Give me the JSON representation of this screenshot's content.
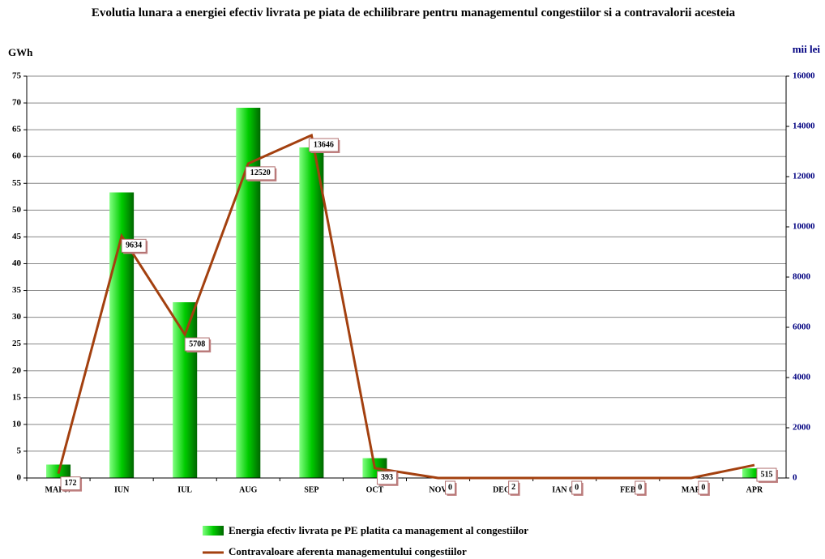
{
  "chart_data": {
    "type": "bar_line",
    "title": "Evolutia lunara a energiei efectiv livrata pe piata de echilibrare pentru managementul congestiilor si a contravalorii acesteia",
    "y_label": "GWh",
    "y2_label": "mii lei",
    "categories": [
      "MAI 07",
      "IUN",
      "IUL",
      "AUG",
      "SEP",
      "OCT",
      "NOV",
      "DEC",
      "IAN 08",
      "FEB",
      "MAR",
      "APR"
    ],
    "series": [
      {
        "name": "Energia efectiv livrata pe PE platita ca management al congestiilor",
        "type": "bar",
        "color": "#00cc00",
        "values": [
          2.5,
          53.3,
          32.8,
          69.1,
          61.7,
          3.7,
          0,
          0,
          0,
          0,
          0,
          1.8
        ]
      },
      {
        "name": "Contravaloare aferenta managementului congestiilor",
        "type": "line",
        "axis": "y2",
        "color": "#a3400f",
        "values": [
          172,
          9634,
          5708,
          12520,
          13646,
          393,
          0,
          2,
          0,
          0,
          0,
          515
        ]
      }
    ],
    "ylim": [
      0,
      75
    ],
    "yticks": [
      0,
      5,
      10,
      15,
      20,
      25,
      30,
      35,
      40,
      45,
      50,
      55,
      60,
      65,
      70,
      75
    ],
    "y2lim": [
      0,
      16000
    ],
    "y2ticks": [
      0,
      2000,
      4000,
      6000,
      8000,
      10000,
      12000,
      14000,
      16000
    ],
    "grid": true,
    "legend": "bottom"
  }
}
